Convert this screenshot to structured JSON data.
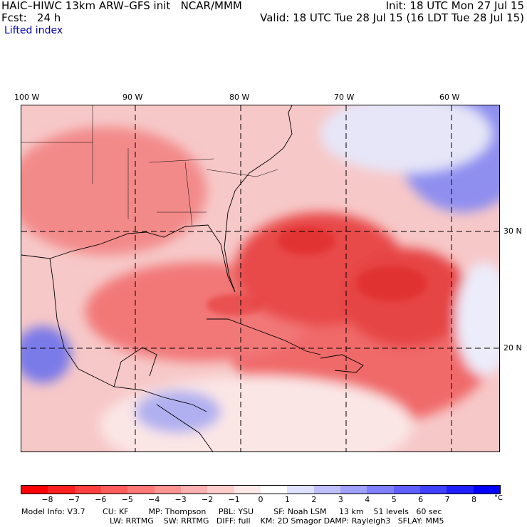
{
  "header": {
    "title_left": "HAIC–HIWC 13km ARW–GFS init   NCAR/MMM",
    "fcst": "Fcst:   24 h",
    "field": "Lifted index",
    "init": "Init: 18 UTC Mon 27 Jul 15",
    "valid": "Valid: 18 UTC Tue 28 Jul 15 (16 LDT Tue 28 Jul 15)"
  },
  "longitudes": [
    "100 W",
    "90 W",
    "80 W",
    "70 W",
    "60 W"
  ],
  "latitudes": [
    "30 N",
    "20 N"
  ],
  "colorbar": {
    "ticks": [
      "−8",
      "−7",
      "−6",
      "−5",
      "−4",
      "−3",
      "−2",
      "−1",
      "0",
      "1",
      "2",
      "3",
      "4",
      "5",
      "6",
      "7",
      "8"
    ],
    "unit": "°C",
    "colors": [
      "#ff0000",
      "#ff2020",
      "#ff4040",
      "#ff5c5c",
      "#ff7878",
      "#ff9494",
      "#ffb0b0",
      "#ffcccc",
      "#ffe8e8",
      "#ffffff",
      "#e0e0ff",
      "#c0c0ff",
      "#a0a0ff",
      "#8080ff",
      "#6060ff",
      "#4040ff",
      "#2020ff",
      "#0000ff"
    ]
  },
  "model_info": {
    "line1": "Model Info: V3.7       CU: KF        MP: Thompson     PBL: YSU        SF: Noah LSM     13 km    51 levels   60 sec",
    "line2": "LW: RRTMG    SW: RRTMG   DIFF: full    KM: 2D Smagor DAMP: Rayleigh3   SFLAY: MM5"
  }
}
